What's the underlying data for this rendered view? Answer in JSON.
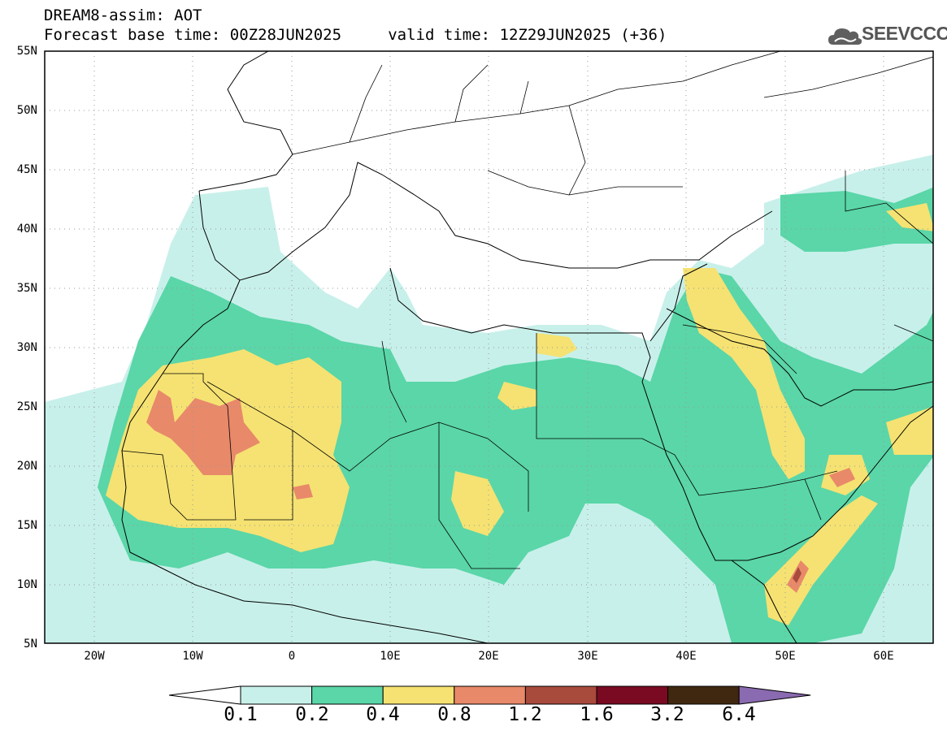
{
  "title": {
    "line1": "DREAM8-assim: AOT",
    "line2": "Forecast base time: 00Z28JUN2025     valid time: 12Z29JUN2025 (+36)"
  },
  "logo": {
    "text": "SEEVCCC",
    "icon": "cloud-icon"
  },
  "map": {
    "lon_range": [
      -25,
      65
    ],
    "lat_range": [
      5,
      55
    ],
    "lat_ticks": [
      "5N",
      "10N",
      "15N",
      "20N",
      "25N",
      "30N",
      "35N",
      "40N",
      "45N",
      "50N",
      "55N"
    ],
    "lon_ticks": [
      "20W",
      "10W",
      "0",
      "10E",
      "20E",
      "30E",
      "40E",
      "50E",
      "60E"
    ],
    "grid": true
  },
  "colorbar": {
    "colors": [
      "#ffffff",
      "#c8f0ea",
      "#5ad6a8",
      "#f5e272",
      "#e8896a",
      "#a84a3c",
      "#7a0a22",
      "#402810",
      "#8a6ab0"
    ],
    "labels": [
      "0.1",
      "0.2",
      "0.4",
      "0.8",
      "1.2",
      "1.6",
      "3.2",
      "6.4"
    ]
  },
  "chart_data": {
    "type": "heatmap",
    "variable": "AOT",
    "levels": [
      0.1,
      0.2,
      0.4,
      0.8,
      1.2,
      1.6,
      3.2,
      6.4
    ],
    "colors": [
      "#c8f0ea",
      "#5ad6a8",
      "#f5e272",
      "#e8896a",
      "#a84a3c",
      "#7a0a22",
      "#402810",
      "#8a6ab0"
    ]
  }
}
